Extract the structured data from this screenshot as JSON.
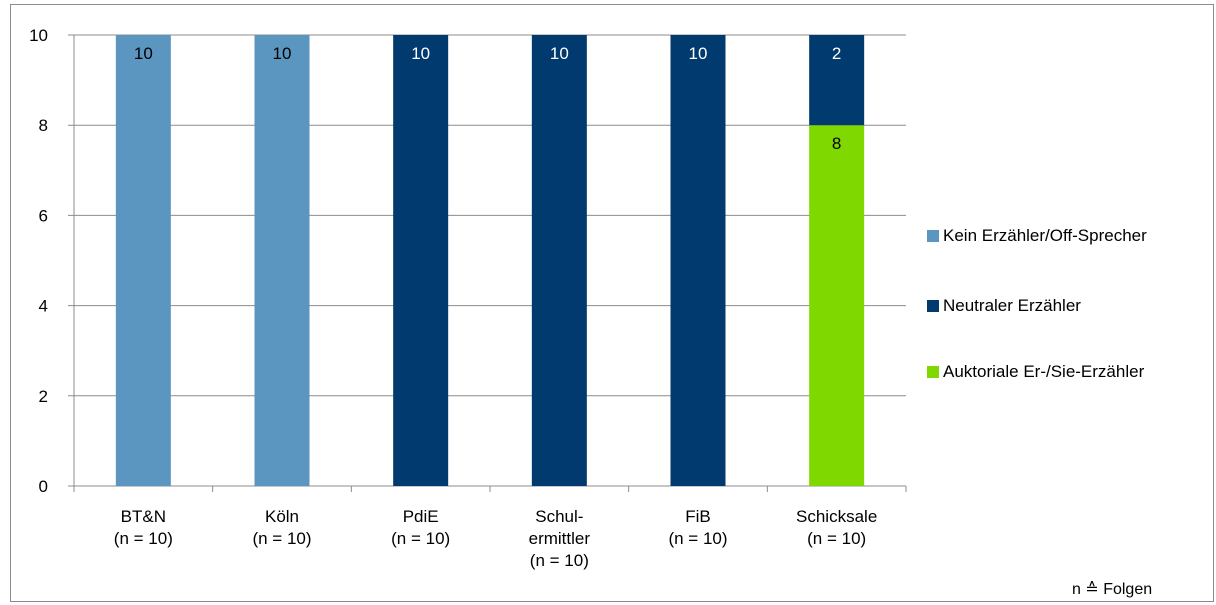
{
  "chart_data": {
    "type": "bar",
    "stacked": true,
    "categories": [
      [
        "BT&N",
        "(n = 10)"
      ],
      [
        "Köln",
        "(n = 10)"
      ],
      [
        "PdiE",
        "(n = 10)"
      ],
      [
        "Schul-",
        "ermittler",
        "(n = 10)"
      ],
      [
        "FiB",
        "(n = 10)"
      ],
      [
        "Schicksale",
        "(n = 10)"
      ]
    ],
    "series": [
      {
        "name": "Kein Erzähler/Off-Sprecher",
        "color": "#5b96c0",
        "label_color": "#000000",
        "values": [
          10,
          10,
          0,
          0,
          0,
          0
        ]
      },
      {
        "name": "Auktoriale Er-/Sie-Erzähler",
        "color": "#7fd900",
        "label_color": "#000000",
        "values": [
          0,
          0,
          0,
          0,
          0,
          8
        ]
      },
      {
        "name": "Neutraler Erzähler",
        "color": "#003a6e",
        "label_color": "#ffffff",
        "values": [
          0,
          0,
          10,
          10,
          10,
          2
        ]
      }
    ],
    "stack_order_bottom_to_top": [
      "Kein Erzähler/Off-Sprecher",
      "Auktoriale Er-/Sie-Erzähler",
      "Neutraler Erzähler"
    ],
    "legend_order": [
      "Kein Erzähler/Off-Sprecher",
      "Neutraler Erzähler",
      "Auktoriale Er-/Sie-Erzähler"
    ],
    "ylim": [
      0,
      10
    ],
    "yticks": [
      0,
      2,
      4,
      6,
      8,
      10
    ],
    "grid": true,
    "legend_position": "right",
    "footnote": "n ≙ Folgen"
  }
}
